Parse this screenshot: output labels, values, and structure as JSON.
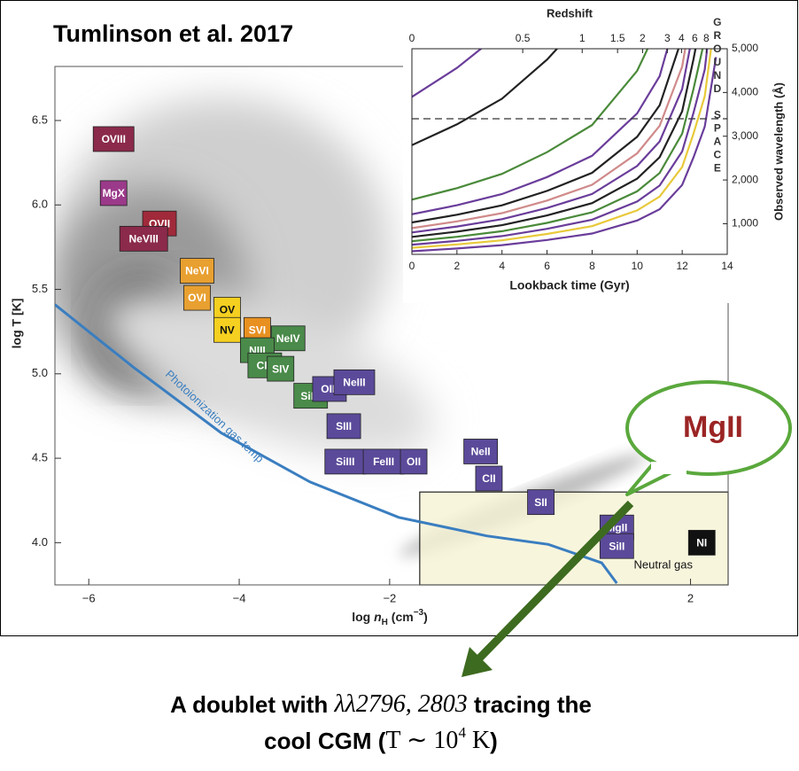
{
  "chart_data": [
    {
      "type": "scatter",
      "title": "Tumlinson et al. 2017",
      "xlabel": [
        "log ",
        "n",
        "H",
        " (cm",
        "−3",
        ")"
      ],
      "ylabel": "log T [K]",
      "xlim": [
        -6.45,
        2.5
      ],
      "ylim": [
        3.75,
        6.82
      ],
      "xticks": [
        {
          "value": -6,
          "label": "−6"
        },
        {
          "value": -4,
          "label": "−4"
        },
        {
          "value": -2,
          "label": "−2"
        },
        2
      ],
      "yticks": [
        {
          "value": 4,
          "label": "4.0"
        },
        4.5,
        {
          "value": 5,
          "label": "5.0"
        },
        5.5,
        {
          "value": 6,
          "label": "6.0"
        },
        6.5
      ],
      "points": [
        {
          "label": "OVIII",
          "x": -5.67,
          "y": 6.39,
          "color": "#8b2a4a"
        },
        {
          "label": "MgX",
          "x": -5.67,
          "y": 6.07,
          "color": "#9b3a8a"
        },
        {
          "label": "OVII",
          "x": -5.06,
          "y": 5.89,
          "color": "#a02a3a"
        },
        {
          "label": "NeVIII",
          "x": -5.27,
          "y": 5.8,
          "color": "#8b2a4a"
        },
        {
          "label": "NeVI",
          "x": -4.56,
          "y": 5.61,
          "color": "#e8a030"
        },
        {
          "label": "OVI",
          "x": -4.56,
          "y": 5.45,
          "color": "#e8a030"
        },
        {
          "label": "OV",
          "x": -4.16,
          "y": 5.38,
          "color": "#f5d020"
        },
        {
          "label": "NV",
          "x": -4.16,
          "y": 5.26,
          "color": "#f5d020"
        },
        {
          "label": "SVI",
          "x": -3.76,
          "y": 5.26,
          "color": "#e89020"
        },
        {
          "label": "NeIV",
          "x": -3.35,
          "y": 5.21,
          "color": "#4a8a4a"
        },
        {
          "label": "NIII",
          "x": -3.76,
          "y": 5.14,
          "color": "#4a8a4a"
        },
        {
          "label": "CIII",
          "x": -3.66,
          "y": 5.05,
          "color": "#4a8a4a"
        },
        {
          "label": "SIV",
          "x": -3.45,
          "y": 5.03,
          "color": "#4a8a4a"
        },
        {
          "label": "SiIV",
          "x": -3.05,
          "y": 4.87,
          "color": "#4a8a4a"
        },
        {
          "label": "OIII",
          "x": -2.8,
          "y": 4.91,
          "color": "#5b4a9a"
        },
        {
          "label": "NeIII",
          "x": -2.47,
          "y": 4.95,
          "color": "#5b4a9a"
        },
        {
          "label": "SIII",
          "x": -2.61,
          "y": 4.69,
          "color": "#5b4a9a"
        },
        {
          "label": "SiIII",
          "x": -2.59,
          "y": 4.48,
          "color": "#5b4a9a"
        },
        {
          "label": "FeIII",
          "x": -2.08,
          "y": 4.48,
          "color": "#5b4a9a"
        },
        {
          "label": "OII",
          "x": -1.68,
          "y": 4.48,
          "color": "#5b4a9a"
        },
        {
          "label": "NeII",
          "x": -0.79,
          "y": 4.54,
          "color": "#5b4a9a"
        },
        {
          "label": "CII",
          "x": -0.68,
          "y": 4.38,
          "color": "#5b4a9a"
        },
        {
          "label": "SII",
          "x": 0.01,
          "y": 4.24,
          "color": "#5b4a9a"
        },
        {
          "label": "MgII",
          "x": 1.02,
          "y": 4.09,
          "color": "#5b4a9a"
        },
        {
          "label": "SiII",
          "x": 1.02,
          "y": 3.98,
          "color": "#5b4a9a"
        },
        {
          "label": "NI",
          "x": 2.15,
          "y": 4.0,
          "color": "#111111"
        }
      ],
      "curve": {
        "name": "Photoionization gas temp",
        "color": "#3a7ec0",
        "x": [
          -6.45,
          -5.41,
          -4.24,
          -3.06,
          -1.88,
          -0.71,
          0.11,
          0.82,
          1.02
        ],
        "values": [
          5.41,
          5.04,
          4.65,
          4.36,
          4.15,
          4.04,
          3.99,
          3.88,
          3.76
        ]
      },
      "region": {
        "name": "Neutral gas",
        "xlim": [
          -1.6,
          2.5
        ],
        "ylim": [
          3.75,
          4.3
        ],
        "color": "#f6f2d4"
      },
      "callout": "MgII",
      "caption": [
        [
          "A doublet with ",
          "λλ2796, 2803",
          " tracing the"
        ],
        [
          "cool CGM (",
          "T ∼ 10",
          "4",
          " K",
          ")"
        ]
      ]
    },
    {
      "type": "line",
      "xlabel": "Lookback time (Gyr)",
      "ylabel": "Observed wavelength (Å)",
      "x2label": "Redshift",
      "xlim": [
        0,
        14
      ],
      "ylim": [
        300,
        5000
      ],
      "xticks": [
        0,
        2,
        4,
        6,
        8,
        10,
        12,
        14
      ],
      "yticks": [
        {
          "value": 1000,
          "label": "1,000"
        },
        {
          "value": 2000,
          "label": "2,000"
        },
        {
          "value": 3000,
          "label": "3,000"
        },
        {
          "value": 4000,
          "label": "4,000"
        },
        {
          "value": 5000,
          "label": "5,000"
        }
      ],
      "x2ticks": [
        {
          "value": 0,
          "label": "0"
        },
        {
          "value": 4.92,
          "label": "0.5"
        },
        {
          "value": 7.56,
          "label": "1"
        },
        {
          "value": 9.13,
          "label": "1.5"
        },
        {
          "value": 10.24,
          "label": "2"
        },
        {
          "value": 11.34,
          "label": "3"
        },
        {
          "value": 11.97,
          "label": "4"
        },
        {
          "value": 12.56,
          "label": "6"
        },
        {
          "value": 13.07,
          "label": "8"
        }
      ],
      "hline": 3400,
      "zones": [
        "GROUND",
        "SPACE"
      ],
      "x": [
        0,
        2,
        4,
        6,
        8,
        10,
        11,
        12,
        12.5,
        13,
        13.5
      ],
      "series": [
        {
          "color": "#6a3d9a",
          "values": [
            370,
            433,
            511,
            629,
            777,
            1073,
            1332,
            1887,
            2516,
            3219,
            4810
          ]
        },
        {
          "color": "#e8c93a",
          "values": [
            450,
            527,
            621,
            765,
            945,
            1305,
            1620,
            2295,
            3060,
            3915,
            5850
          ]
        },
        {
          "color": "#6a3d9a",
          "values": [
            520,
            608,
            718,
            884,
            1092,
            1508,
            1872,
            2652,
            3536,
            4524,
            6760
          ]
        },
        {
          "color": "#4a8a3a",
          "values": [
            600,
            702,
            828,
            1020,
            1260,
            1740,
            2160,
            3060,
            4080,
            5220,
            null
          ]
        },
        {
          "color": "#222222",
          "values": [
            700,
            819,
            966,
            1190,
            1470,
            2030,
            2520,
            3570,
            4760,
            6090,
            null
          ]
        },
        {
          "color": "#6a3d9a",
          "values": [
            800,
            936,
            1104,
            1360,
            1680,
            2320,
            2880,
            4080,
            5440,
            null,
            null
          ]
        },
        {
          "color": "#d08a8a",
          "values": [
            900,
            1053,
            1242,
            1530,
            1890,
            2610,
            3240,
            4590,
            6120,
            null,
            null
          ]
        },
        {
          "color": "#222222",
          "values": [
            1030,
            1205,
            1421,
            1751,
            2163,
            2987,
            3708,
            5253,
            null,
            null,
            null
          ]
        },
        {
          "color": "#6a3d9a",
          "values": [
            1215,
            1422,
            1677,
            2066,
            2552,
            3524,
            4374,
            6197,
            null,
            null,
            null
          ]
        },
        {
          "color": "#4a8a3a",
          "values": [
            1550,
            1814,
            2139,
            2635,
            3255,
            4495,
            5580,
            null,
            null,
            null,
            null
          ]
        },
        {
          "color": "#222222",
          "values": [
            2796,
            3271,
            3858,
            4753,
            5872,
            null,
            null,
            null,
            null,
            null,
            null
          ]
        },
        {
          "color": "#6a3d9a",
          "values": [
            3900,
            4563,
            5382,
            null,
            null,
            null,
            null,
            null,
            null,
            null,
            null
          ]
        }
      ]
    }
  ]
}
